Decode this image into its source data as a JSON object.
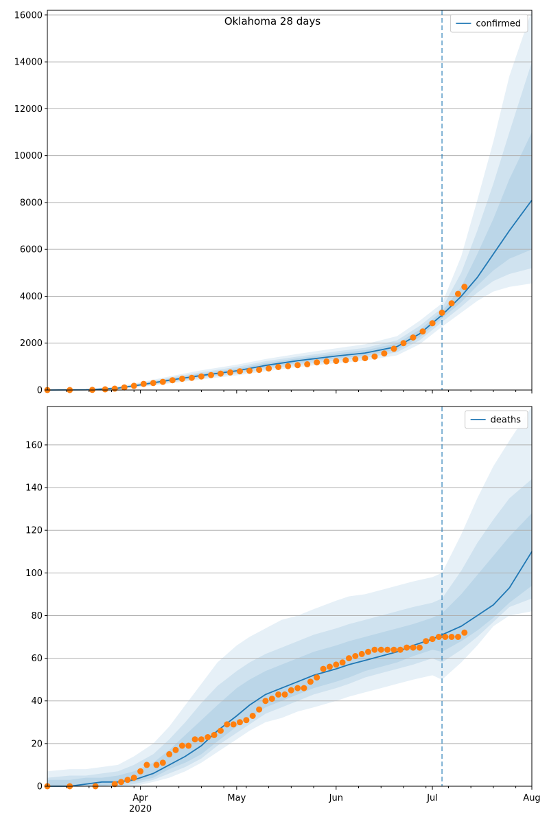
{
  "figure": {
    "title": "Oklahoma 28 days",
    "date_ticks": [
      "Apr",
      "May",
      "Jun",
      "Jul",
      "Aug"
    ],
    "year_label": "2020"
  },
  "colors": {
    "line": "#1f77b4",
    "band": "#1f77b4",
    "observed": "#ff7f0e",
    "grid": "#b0b0b0",
    "vline": "#1f77b4"
  },
  "chart_data": [
    {
      "type": "line",
      "legend": "confirmed",
      "legend_position": "top-right",
      "grid": "horizontal",
      "x_range": [
        "2020-03-03",
        "2020-08-01"
      ],
      "ylim": [
        0,
        16200
      ],
      "yticks": [
        0,
        2000,
        4000,
        6000,
        8000,
        10000,
        12000,
        14000,
        16000
      ],
      "forecast_start": "2020-07-04",
      "model_median": {
        "dates": [
          "2020-03-03",
          "2020-03-15",
          "2020-03-25",
          "2020-04-01",
          "2020-04-10",
          "2020-04-20",
          "2020-05-01",
          "2020-05-10",
          "2020-05-20",
          "2020-06-01",
          "2020-06-10",
          "2020-06-20",
          "2020-06-27",
          "2020-07-04",
          "2020-07-10",
          "2020-07-15",
          "2020-07-20",
          "2020-07-25",
          "2020-08-01"
        ],
        "values": [
          0,
          10,
          80,
          220,
          420,
          620,
          820,
          1050,
          1250,
          1450,
          1580,
          1850,
          2400,
          3200,
          4000,
          4800,
          5800,
          6800,
          8100
        ]
      },
      "bands": [
        {
          "lower": [
            0,
            0,
            40,
            130,
            280,
            450,
            620,
            800,
            980,
            1150,
            1260,
            1480,
            1950,
            2700,
            3300,
            3800,
            4200,
            4400,
            4550
          ],
          "upper": [
            0,
            30,
            150,
            330,
            580,
            840,
            1080,
            1320,
            1540,
            1780,
            1950,
            2300,
            2950,
            3700,
            5700,
            8100,
            10600,
            13400,
            16200
          ]
        },
        {
          "lower": [
            0,
            0,
            55,
            160,
            320,
            510,
            690,
            880,
            1070,
            1250,
            1370,
            1610,
            2120,
            2900,
            3550,
            4150,
            4650,
            4950,
            5200
          ],
          "upper": [
            0,
            20,
            120,
            290,
            520,
            760,
            990,
            1230,
            1430,
            1650,
            1800,
            2120,
            2730,
            3500,
            5000,
            6800,
            8800,
            11000,
            14000
          ]
        },
        {
          "lower": [
            0,
            5,
            65,
            185,
            360,
            560,
            750,
            960,
            1150,
            1340,
            1460,
            1720,
            2250,
            3050,
            3750,
            4450,
            5100,
            5600,
            6000
          ],
          "upper": [
            0,
            15,
            100,
            260,
            480,
            700,
            910,
            1150,
            1350,
            1560,
            1700,
            1990,
            2570,
            3350,
            4400,
            5800,
            7300,
            9000,
            11000
          ]
        }
      ],
      "observed": {
        "dates": [
          "2020-03-03",
          "2020-03-10",
          "2020-03-17",
          "2020-03-21",
          "2020-03-24",
          "2020-03-27",
          "2020-03-30",
          "2020-04-02",
          "2020-04-05",
          "2020-04-08",
          "2020-04-11",
          "2020-04-14",
          "2020-04-17",
          "2020-04-20",
          "2020-04-23",
          "2020-04-26",
          "2020-04-29",
          "2020-05-02",
          "2020-05-05",
          "2020-05-08",
          "2020-05-11",
          "2020-05-14",
          "2020-05-17",
          "2020-05-20",
          "2020-05-23",
          "2020-05-26",
          "2020-05-29",
          "2020-06-01",
          "2020-06-04",
          "2020-06-07",
          "2020-06-10",
          "2020-06-13",
          "2020-06-16",
          "2020-06-19",
          "2020-06-22",
          "2020-06-25",
          "2020-06-28",
          "2020-07-01",
          "2020-07-04",
          "2020-07-07",
          "2020-07-09",
          "2020-07-11"
        ],
        "values": [
          0,
          0,
          5,
          30,
          60,
          110,
          180,
          260,
          300,
          350,
          420,
          480,
          520,
          580,
          640,
          700,
          750,
          800,
          820,
          860,
          920,
          980,
          1020,
          1060,
          1100,
          1180,
          1220,
          1240,
          1270,
          1320,
          1360,
          1430,
          1560,
          1760,
          2000,
          2240,
          2500,
          2850,
          3300,
          3700,
          4100,
          4400
        ]
      }
    },
    {
      "type": "line",
      "legend": "deaths",
      "legend_position": "top-right",
      "grid": "horizontal",
      "x_range": [
        "2020-03-03",
        "2020-08-01"
      ],
      "ylim": [
        0,
        178
      ],
      "yticks": [
        0,
        20,
        40,
        60,
        80,
        100,
        120,
        140,
        160
      ],
      "forecast_start": "2020-07-04",
      "model_median": {
        "dates": [
          "2020-03-03",
          "2020-03-10",
          "2020-03-15",
          "2020-03-20",
          "2020-03-25",
          "2020-03-30",
          "2020-04-05",
          "2020-04-10",
          "2020-04-15",
          "2020-04-20",
          "2020-04-25",
          "2020-05-01",
          "2020-05-05",
          "2020-05-10",
          "2020-05-15",
          "2020-05-20",
          "2020-05-25",
          "2020-06-01",
          "2020-06-05",
          "2020-06-10",
          "2020-06-15",
          "2020-06-20",
          "2020-06-25",
          "2020-07-01",
          "2020-07-04",
          "2020-07-10",
          "2020-07-15",
          "2020-07-20",
          "2020-07-25",
          "2020-08-01"
        ],
        "values": [
          0,
          0,
          1,
          2,
          2,
          3,
          6,
          10,
          14,
          19,
          26,
          33,
          38,
          43,
          46,
          49,
          52,
          55,
          57,
          59,
          61,
          63,
          66,
          69,
          71,
          75,
          80,
          85,
          93,
          110
        ]
      },
      "bands": [
        {
          "lower": [
            0,
            0,
            0,
            0,
            0,
            0,
            2,
            4,
            7,
            11,
            16,
            22,
            26,
            30,
            32,
            35,
            37,
            40,
            42,
            44,
            46,
            48,
            50,
            52,
            50,
            58,
            66,
            75,
            80,
            82
          ],
          "upper": [
            7,
            8,
            8,
            9,
            10,
            14,
            20,
            28,
            38,
            48,
            58,
            66,
            70,
            74,
            78,
            80,
            83,
            87,
            89,
            90,
            92,
            94,
            96,
            98,
            100,
            118,
            135,
            150,
            162,
            178
          ]
        },
        {
          "lower": [
            0,
            0,
            0,
            0,
            0,
            1,
            3,
            6,
            9,
            13,
            19,
            25,
            29,
            34,
            37,
            40,
            43,
            46,
            48,
            51,
            53,
            55,
            57,
            60,
            58,
            64,
            70,
            77,
            84,
            88
          ],
          "upper": [
            4,
            5,
            5,
            6,
            7,
            10,
            15,
            22,
            30,
            39,
            47,
            54,
            58,
            62,
            65,
            68,
            71,
            74,
            76,
            78,
            80,
            82,
            84,
            86,
            88,
            101,
            114,
            125,
            135,
            144
          ]
        },
        {
          "lower": [
            0,
            0,
            0,
            0,
            1,
            2,
            4,
            8,
            11,
            15,
            21,
            28,
            32,
            37,
            40,
            43,
            46,
            49,
            51,
            54,
            56,
            58,
            61,
            64,
            63,
            68,
            73,
            79,
            86,
            94
          ],
          "upper": [
            3,
            3,
            4,
            4,
            5,
            7,
            11,
            17,
            24,
            31,
            38,
            46,
            50,
            54,
            57,
            60,
            63,
            66,
            68,
            70,
            72,
            74,
            76,
            79,
            81,
            90,
            99,
            108,
            117,
            128
          ]
        }
      ],
      "observed": {
        "dates": [
          "2020-03-03",
          "2020-03-10",
          "2020-03-18",
          "2020-03-24",
          "2020-03-26",
          "2020-03-28",
          "2020-03-30",
          "2020-04-01",
          "2020-04-03",
          "2020-04-06",
          "2020-04-08",
          "2020-04-10",
          "2020-04-12",
          "2020-04-14",
          "2020-04-16",
          "2020-04-18",
          "2020-04-20",
          "2020-04-22",
          "2020-04-24",
          "2020-04-26",
          "2020-04-28",
          "2020-04-30",
          "2020-05-02",
          "2020-05-04",
          "2020-05-06",
          "2020-05-08",
          "2020-05-10",
          "2020-05-12",
          "2020-05-14",
          "2020-05-16",
          "2020-05-18",
          "2020-05-20",
          "2020-05-22",
          "2020-05-24",
          "2020-05-26",
          "2020-05-28",
          "2020-05-30",
          "2020-06-01",
          "2020-06-03",
          "2020-06-05",
          "2020-06-07",
          "2020-06-09",
          "2020-06-11",
          "2020-06-13",
          "2020-06-15",
          "2020-06-17",
          "2020-06-19",
          "2020-06-21",
          "2020-06-23",
          "2020-06-25",
          "2020-06-27",
          "2020-06-29",
          "2020-07-01",
          "2020-07-03",
          "2020-07-05",
          "2020-07-07",
          "2020-07-09",
          "2020-07-11"
        ],
        "values": [
          0,
          0,
          0,
          1,
          2,
          3,
          4,
          7,
          10,
          10,
          11,
          15,
          17,
          19,
          19,
          22,
          22,
          23,
          24,
          26,
          29,
          29,
          30,
          31,
          33,
          36,
          40,
          41,
          43,
          43,
          45,
          46,
          46,
          49,
          51,
          55,
          56,
          57,
          58,
          60,
          61,
          62,
          63,
          64,
          64,
          64,
          64,
          64,
          65,
          65,
          65,
          68,
          69,
          70,
          70,
          70,
          70,
          72
        ]
      }
    }
  ]
}
